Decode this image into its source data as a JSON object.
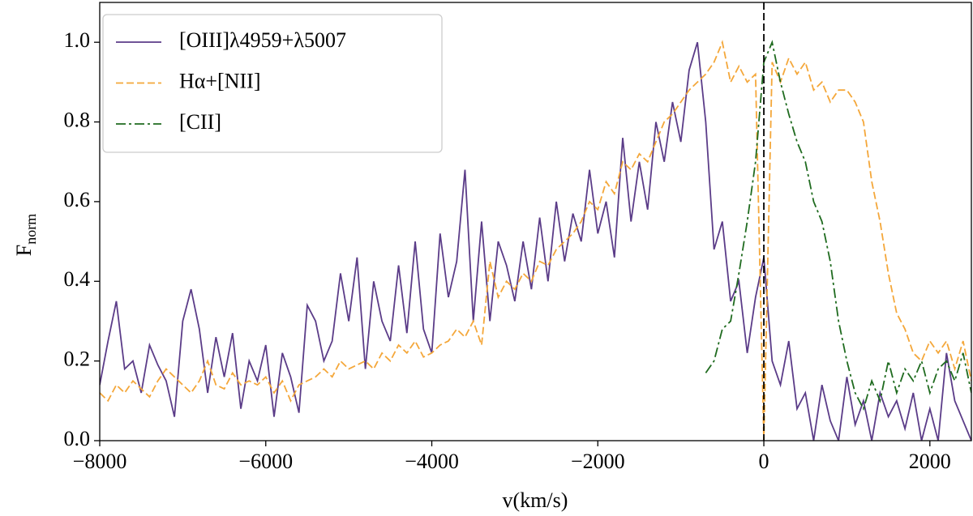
{
  "chart_data": {
    "type": "line",
    "xlabel": "v(km/s)",
    "ylabel": {
      "text": "F",
      "subscript": "norm"
    },
    "xlim": [
      -8000,
      2500
    ],
    "ylim": [
      0,
      1.1
    ],
    "xticks": [
      {
        "value": -8000,
        "label": "−8000"
      },
      {
        "value": -6000,
        "label": "−6000"
      },
      {
        "value": -4000,
        "label": "−4000"
      },
      {
        "value": -2000,
        "label": "−2000"
      },
      0,
      2000
    ],
    "yticks": [
      {
        "value": 0,
        "label": "0.0"
      },
      0.2,
      0.4,
      0.6,
      0.8,
      {
        "value": 1,
        "label": "1.0"
      }
    ],
    "legend": "upper left",
    "vlines": [
      {
        "x": 0,
        "color": "#000000",
        "style": "dashed"
      }
    ],
    "x": [
      -8000,
      -7900,
      -7800,
      -7700,
      -7600,
      -7500,
      -7400,
      -7300,
      -7200,
      -7100,
      -7000,
      -6900,
      -6800,
      -6700,
      -6600,
      -6500,
      -6400,
      -6300,
      -6200,
      -6100,
      -6000,
      -5900,
      -5800,
      -5700,
      -5600,
      -5500,
      -5400,
      -5300,
      -5200,
      -5100,
      -5000,
      -4900,
      -4800,
      -4700,
      -4600,
      -4500,
      -4400,
      -4300,
      -4200,
      -4100,
      -4000,
      -3900,
      -3800,
      -3700,
      -3600,
      -3500,
      -3400,
      -3300,
      -3200,
      -3100,
      -3000,
      -2900,
      -2800,
      -2700,
      -2600,
      -2500,
      -2400,
      -2300,
      -2200,
      -2100,
      -2000,
      -1900,
      -1800,
      -1700,
      -1600,
      -1500,
      -1400,
      -1300,
      -1200,
      -1100,
      -1000,
      -900,
      -800,
      -700,
      -600,
      -500,
      -400,
      -300,
      -200,
      -100,
      0,
      100,
      200,
      300,
      400,
      500,
      600,
      700,
      800,
      900,
      1000,
      1100,
      1200,
      1300,
      1400,
      1500,
      1600,
      1700,
      1800,
      1900,
      2000,
      2100,
      2200,
      2300,
      2400,
      2500
    ],
    "series": [
      {
        "name": "[OIII]λ4959+λ5007",
        "color": "#5b3c88",
        "style": "solid",
        "values": [
          0.14,
          0.25,
          0.35,
          0.18,
          0.2,
          0.12,
          0.24,
          0.19,
          0.15,
          0.06,
          0.3,
          0.38,
          0.28,
          0.12,
          0.26,
          0.16,
          0.27,
          0.08,
          0.2,
          0.15,
          0.24,
          0.06,
          0.22,
          0.16,
          0.07,
          0.34,
          0.3,
          0.2,
          0.25,
          0.42,
          0.3,
          0.46,
          0.18,
          0.4,
          0.3,
          0.25,
          0.44,
          0.27,
          0.5,
          0.28,
          0.22,
          0.52,
          0.36,
          0.45,
          0.68,
          0.3,
          0.55,
          0.3,
          0.5,
          0.44,
          0.35,
          0.5,
          0.38,
          0.56,
          0.4,
          0.6,
          0.45,
          0.57,
          0.5,
          0.68,
          0.52,
          0.6,
          0.46,
          0.76,
          0.55,
          0.7,
          0.58,
          0.8,
          0.7,
          0.85,
          0.75,
          0.93,
          1.0,
          0.8,
          0.48,
          0.55,
          0.35,
          0.4,
          0.22,
          0.36,
          0.46,
          0.2,
          0.14,
          0.25,
          0.08,
          0.12,
          0.0,
          0.14,
          0.05,
          0.0,
          0.16,
          0.04,
          0.1,
          0.0,
          0.12,
          0.06,
          0.1,
          0.03,
          0.12,
          0.0,
          0.08,
          0.0,
          0.22,
          0.1,
          0.05,
          0.0
        ]
      },
      {
        "name": "Hα+[NII]",
        "color": "#f4a73a",
        "style": "dashed",
        "values": [
          0.12,
          0.1,
          0.14,
          0.12,
          0.15,
          0.13,
          0.11,
          0.15,
          0.18,
          0.16,
          0.14,
          0.12,
          0.15,
          0.2,
          0.14,
          0.13,
          0.17,
          0.14,
          0.15,
          0.14,
          0.16,
          0.12,
          0.15,
          0.1,
          0.14,
          0.15,
          0.16,
          0.18,
          0.16,
          0.2,
          0.18,
          0.19,
          0.2,
          0.18,
          0.22,
          0.2,
          0.24,
          0.22,
          0.25,
          0.21,
          0.22,
          0.24,
          0.25,
          0.28,
          0.26,
          0.3,
          0.24,
          0.45,
          0.36,
          0.4,
          0.38,
          0.42,
          0.4,
          0.45,
          0.44,
          0.48,
          0.5,
          0.52,
          0.55,
          0.6,
          0.58,
          0.65,
          0.62,
          0.7,
          0.68,
          0.72,
          0.7,
          0.75,
          0.8,
          0.82,
          0.85,
          0.88,
          0.9,
          0.92,
          0.95,
          1.0,
          0.9,
          0.94,
          0.9,
          0.92,
          0.0,
          0.95,
          0.9,
          0.96,
          0.92,
          0.95,
          0.88,
          0.9,
          0.85,
          0.88,
          0.88,
          0.85,
          0.8,
          0.65,
          0.55,
          0.42,
          0.32,
          0.28,
          0.22,
          0.2,
          0.25,
          0.22,
          0.25,
          0.18,
          0.25,
          0.15
        ]
      },
      {
        "name": "[CII]",
        "color": "#1f6b1f",
        "style": "dashdot",
        "values": [
          null,
          null,
          null,
          null,
          null,
          null,
          null,
          null,
          null,
          null,
          null,
          null,
          null,
          null,
          null,
          null,
          null,
          null,
          null,
          null,
          null,
          null,
          null,
          null,
          null,
          null,
          null,
          null,
          null,
          null,
          null,
          null,
          null,
          null,
          null,
          null,
          null,
          null,
          null,
          null,
          null,
          null,
          null,
          null,
          null,
          null,
          null,
          null,
          null,
          null,
          null,
          null,
          null,
          null,
          null,
          null,
          null,
          null,
          null,
          null,
          null,
          null,
          null,
          null,
          null,
          null,
          null,
          null,
          null,
          null,
          null,
          null,
          null,
          0.17,
          0.2,
          0.28,
          0.3,
          0.42,
          0.55,
          0.7,
          0.95,
          1.0,
          0.9,
          0.82,
          0.75,
          0.7,
          0.6,
          0.55,
          0.45,
          0.3,
          0.2,
          0.12,
          0.08,
          0.15,
          0.1,
          0.2,
          0.12,
          0.18,
          0.15,
          0.2,
          0.12,
          0.18,
          0.2,
          0.15,
          0.22,
          0.12
        ]
      }
    ]
  }
}
